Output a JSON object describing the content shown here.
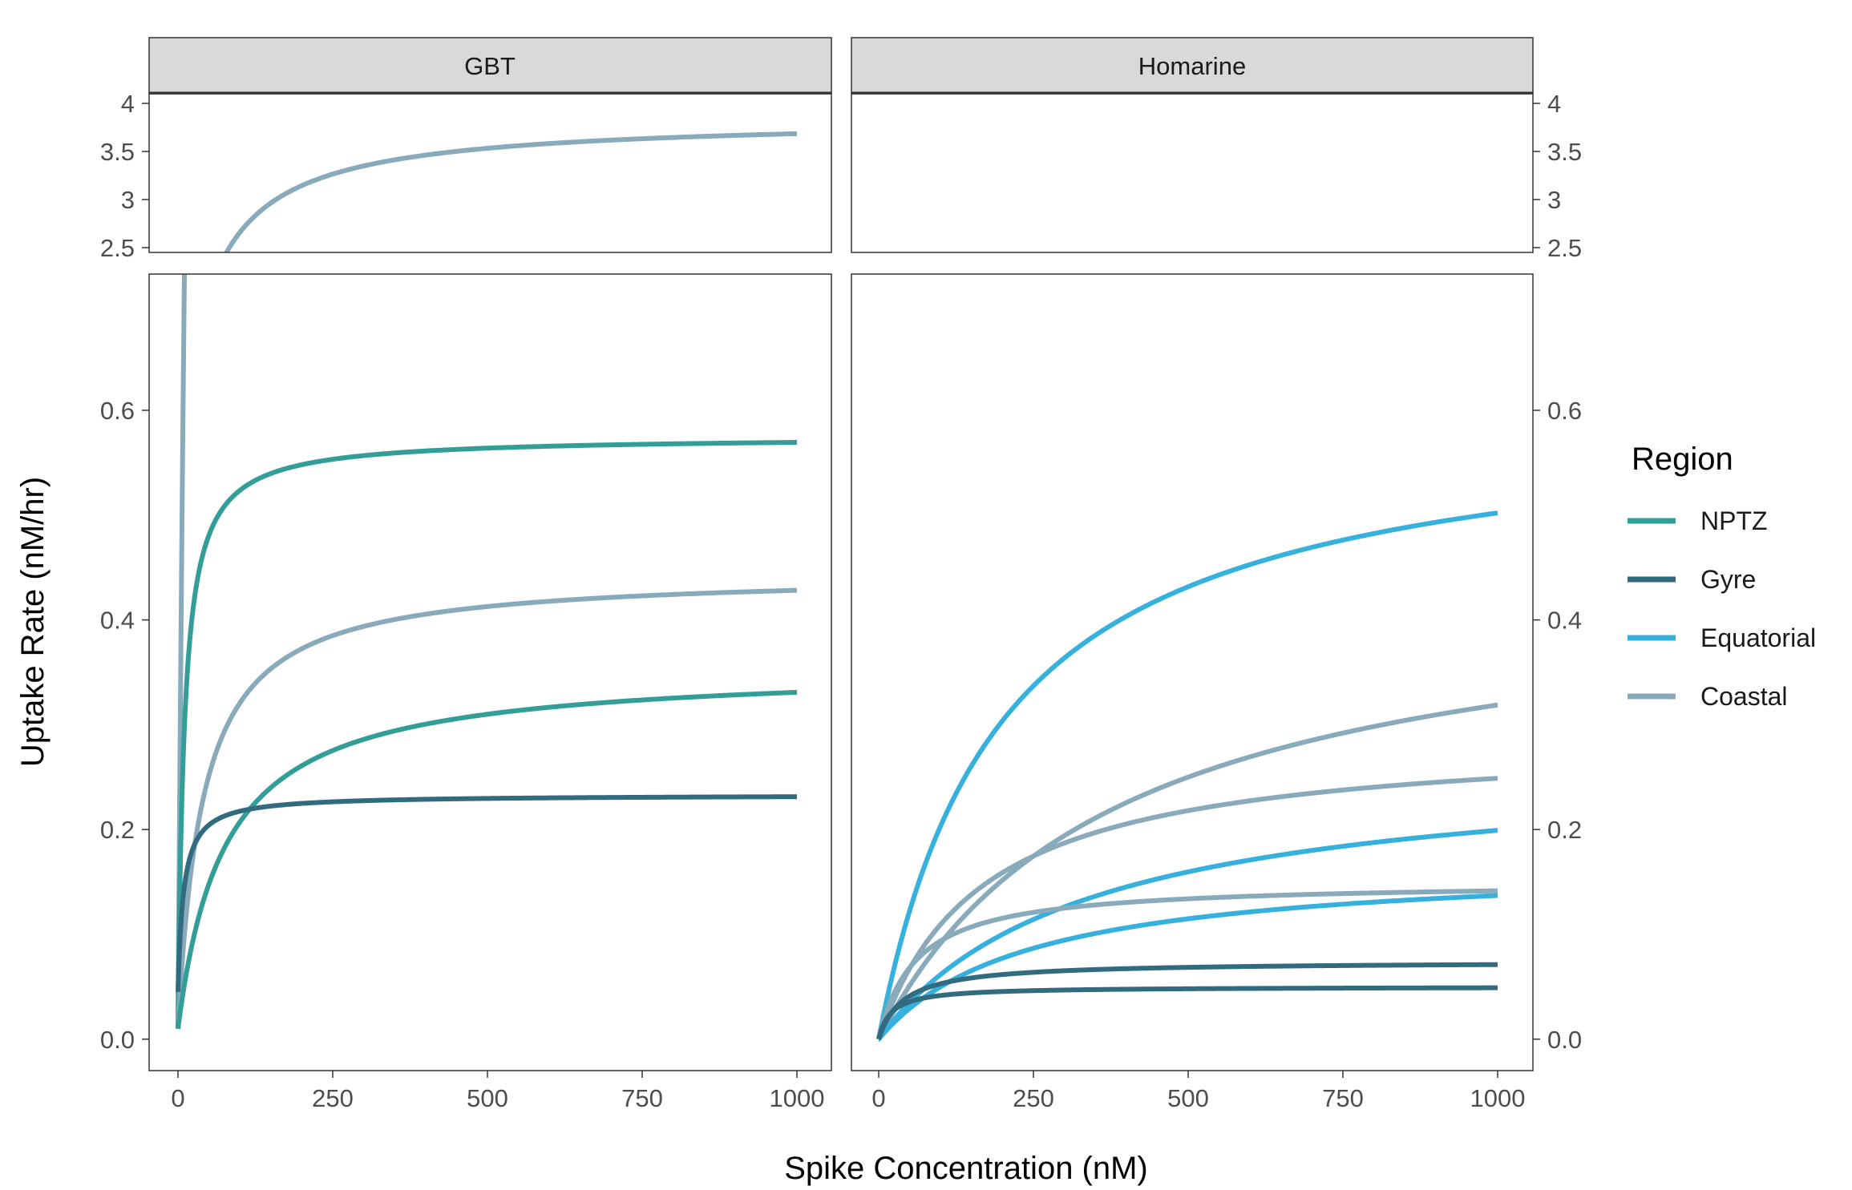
{
  "chart_data": {
    "type": "line",
    "xlabel": "Spike Concentration (nM)",
    "ylabel": "Uptake Rate (nM/hr)",
    "xlim": [
      0,
      1000
    ],
    "x_ticks": [
      "0",
      "250",
      "500",
      "750",
      "1000"
    ],
    "y_ticks_lower": [
      "0.0",
      "0.2",
      "0.4",
      "0.6"
    ],
    "y_ticks_upper": [
      "2.5",
      "3",
      "3.5",
      "4"
    ],
    "ylim_lower": [
      -0.03,
      0.73
    ],
    "ylim_upper": [
      2.45,
      4.1
    ],
    "grid": false,
    "legend_position": "right",
    "legend": {
      "title": "Region",
      "entries": [
        {
          "name": "NPTZ",
          "color": "#339e97"
        },
        {
          "name": "Gyre",
          "color": "#326a80"
        },
        {
          "name": "Equatorial",
          "color": "#36b0dc"
        },
        {
          "name": "Coastal",
          "color": "#88aabb"
        }
      ]
    },
    "panels": [
      {
        "strip": "GBT",
        "series": [
          {
            "region": "Coastal",
            "vmax": 3.85,
            "km": 45,
            "offset": 0.01
          },
          {
            "region": "NPTZ",
            "vmax": 0.575,
            "km": 10,
            "offset": 0.01
          },
          {
            "region": "Coastal",
            "vmax": 0.445,
            "km": 40,
            "offset": 0.01
          },
          {
            "region": "NPTZ",
            "vmax": 0.355,
            "km": 75,
            "offset": 0.01
          },
          {
            "region": "Gyre",
            "vmax": 0.233,
            "km": 9,
            "offset": 0.045
          }
        ]
      },
      {
        "strip": "Homarine",
        "series": [
          {
            "region": "Equatorial",
            "vmax": 0.6,
            "km": 195,
            "offset": 0
          },
          {
            "region": "Coastal",
            "vmax": 0.44,
            "km": 380,
            "offset": 0
          },
          {
            "region": "Coastal",
            "vmax": 0.29,
            "km": 165,
            "offset": 0
          },
          {
            "region": "Equatorial",
            "vmax": 0.265,
            "km": 330,
            "offset": 0
          },
          {
            "region": "Coastal",
            "vmax": 0.15,
            "km": 60,
            "offset": 0
          },
          {
            "region": "Equatorial",
            "vmax": 0.17,
            "km": 240,
            "offset": 0
          },
          {
            "region": "Gyre",
            "vmax": 0.074,
            "km": 40,
            "offset": 0
          },
          {
            "region": "Gyre",
            "vmax": 0.05,
            "km": 20,
            "offset": 0
          }
        ]
      }
    ]
  }
}
